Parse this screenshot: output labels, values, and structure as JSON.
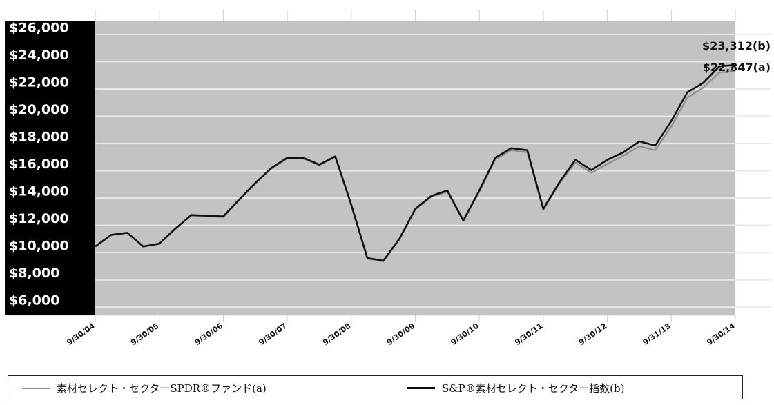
{
  "chart_data": {
    "type": "line",
    "title": "",
    "xlabel": "",
    "ylabel": "",
    "ylim": [
      5000,
      26500
    ],
    "y_ticks": [
      {
        "value": 26000,
        "label": "$26,000"
      },
      {
        "value": 24000,
        "label": "$24,000"
      },
      {
        "value": 22000,
        "label": "$22,000"
      },
      {
        "value": 20000,
        "label": "$20,000"
      },
      {
        "value": 18000,
        "label": "$18,000"
      },
      {
        "value": 16000,
        "label": "$16,000"
      },
      {
        "value": 14000,
        "label": "$14,000"
      },
      {
        "value": 12000,
        "label": "$12,000"
      },
      {
        "value": 10000,
        "label": "$10,000"
      },
      {
        "value": 8000,
        "label": "$8,000"
      },
      {
        "value": 6000,
        "label": "$6,000"
      }
    ],
    "x_ticks": [
      "9/30/04",
      "9/30/05",
      "9/30/06",
      "9/30/07",
      "9/30/08",
      "9/30/09",
      "9/30/10",
      "9/30/11",
      "9/30/12",
      "9/31/13",
      "9/30/14"
    ],
    "x_range": [
      0,
      40
    ],
    "grid": true,
    "legend_position": "bottom",
    "series": [
      {
        "name": "素材セレクト・セクターSPDR®ファンド(a)",
        "color": "#8c8c8c",
        "end_label": "$22,847(a)",
        "points": [
          [
            0,
            10000
          ],
          [
            1,
            10850
          ],
          [
            2,
            11000
          ],
          [
            3,
            10000
          ],
          [
            4,
            10200
          ],
          [
            5,
            11300
          ],
          [
            6,
            12250
          ],
          [
            7,
            12200
          ],
          [
            8,
            12150
          ],
          [
            9,
            13400
          ],
          [
            10,
            14600
          ],
          [
            11,
            15700
          ],
          [
            12,
            16450
          ],
          [
            13,
            16450
          ],
          [
            14,
            15950
          ],
          [
            15,
            16550
          ],
          [
            16,
            13000
          ],
          [
            17,
            9100
          ],
          [
            18,
            8900
          ],
          [
            19,
            10500
          ],
          [
            20,
            12700
          ],
          [
            21,
            13650
          ],
          [
            22,
            14000
          ],
          [
            23,
            11850
          ],
          [
            24,
            14000
          ],
          [
            25,
            16400
          ],
          [
            26,
            17050
          ],
          [
            27,
            16900
          ],
          [
            28,
            12700
          ],
          [
            29,
            14600
          ],
          [
            30,
            16150
          ],
          [
            31,
            15400
          ],
          [
            32,
            16050
          ],
          [
            33,
            16650
          ],
          [
            34,
            17350
          ],
          [
            35,
            17050
          ],
          [
            36,
            18800
          ],
          [
            37,
            20900
          ],
          [
            38,
            21650
          ],
          [
            39,
            22750
          ],
          [
            40,
            22847
          ]
        ]
      },
      {
        "name": "S&P®素材セレクト・セクター指数(b)",
        "color": "#111111",
        "end_label": "$23,312(b)",
        "points": [
          [
            0,
            10000
          ],
          [
            1,
            10850
          ],
          [
            2,
            11000
          ],
          [
            3,
            10000
          ],
          [
            4,
            10200
          ],
          [
            5,
            11300
          ],
          [
            6,
            12300
          ],
          [
            7,
            12250
          ],
          [
            8,
            12200
          ],
          [
            9,
            13450
          ],
          [
            10,
            14650
          ],
          [
            11,
            15750
          ],
          [
            12,
            16500
          ],
          [
            13,
            16500
          ],
          [
            14,
            16000
          ],
          [
            15,
            16600
          ],
          [
            16,
            13050
          ],
          [
            17,
            9150
          ],
          [
            18,
            8950
          ],
          [
            19,
            10550
          ],
          [
            20,
            12750
          ],
          [
            21,
            13700
          ],
          [
            22,
            14100
          ],
          [
            23,
            11900
          ],
          [
            24,
            14100
          ],
          [
            25,
            16500
          ],
          [
            26,
            17200
          ],
          [
            27,
            17050
          ],
          [
            28,
            12750
          ],
          [
            29,
            14700
          ],
          [
            30,
            16350
          ],
          [
            31,
            15600
          ],
          [
            32,
            16350
          ],
          [
            33,
            16900
          ],
          [
            34,
            17700
          ],
          [
            35,
            17400
          ],
          [
            36,
            19200
          ],
          [
            37,
            21300
          ],
          [
            38,
            22000
          ],
          [
            39,
            23200
          ],
          [
            40,
            23312
          ]
        ]
      }
    ]
  },
  "legend": {
    "fund_label": "素材セレクト・セクターSPDR®ファンド(a)",
    "index_label": "S&P®素材セレクト・セクター指数(b)"
  }
}
